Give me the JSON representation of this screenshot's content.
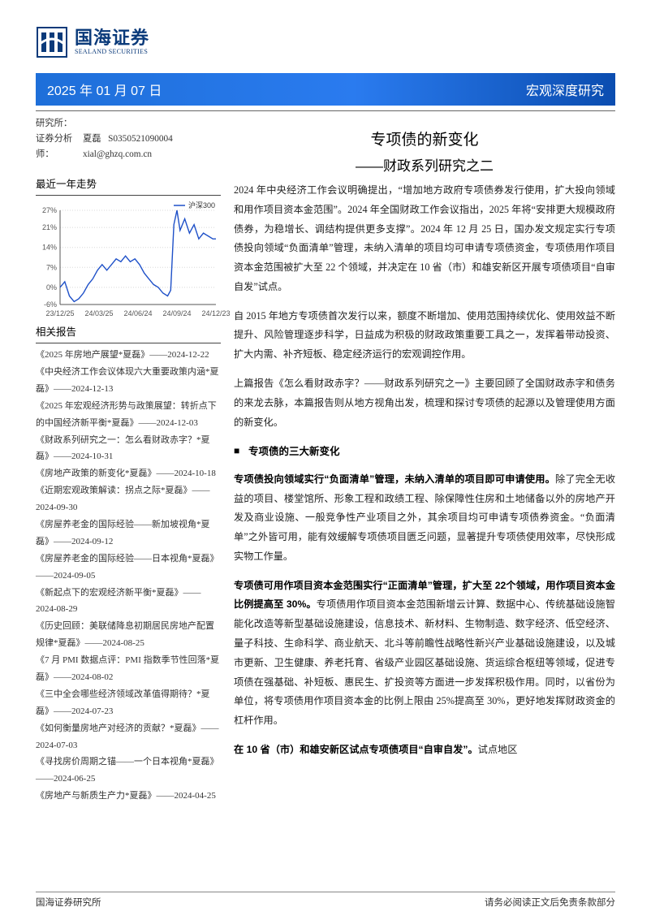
{
  "logo": {
    "cn": "国海证券",
    "en": "SEALAND SECURITIES"
  },
  "date_bar": {
    "left": "2025 年 01 月 07 日",
    "right": "宏观深度研究"
  },
  "analyst": {
    "dept_label": "研究所：",
    "name_label": "证券分析师：",
    "name": "夏磊",
    "code": "S0350521090004",
    "email": "xial@ghzq.com.cn"
  },
  "trend_section_title": "最近一年走势",
  "reports_section_title": "相关报告",
  "chart": {
    "type": "line",
    "legend": "沪深300",
    "legend_color": "#1e50c8",
    "background_color": "#ffffff",
    "grid_color": "#d8d8d8",
    "line_color": "#1e50c8",
    "axis_color": "#555555",
    "x_labels": [
      "23/12/25",
      "24/03/25",
      "24/06/24",
      "24/09/24",
      "24/12/23"
    ],
    "y_ticks": [
      -6,
      0,
      7,
      14,
      21,
      27
    ],
    "y_tick_format_pct": true,
    "ylim": [
      -6,
      27
    ],
    "font_size_ticks_pt": 9,
    "series": [
      [
        0,
        0
      ],
      [
        0.03,
        2
      ],
      [
        0.06,
        -3
      ],
      [
        0.09,
        -5
      ],
      [
        0.12,
        -4
      ],
      [
        0.15,
        -2
      ],
      [
        0.18,
        1
      ],
      [
        0.21,
        3
      ],
      [
        0.24,
        6
      ],
      [
        0.27,
        8
      ],
      [
        0.3,
        6
      ],
      [
        0.33,
        8
      ],
      [
        0.36,
        10
      ],
      [
        0.39,
        9
      ],
      [
        0.42,
        11
      ],
      [
        0.45,
        9
      ],
      [
        0.48,
        10
      ],
      [
        0.51,
        8
      ],
      [
        0.54,
        5
      ],
      [
        0.57,
        3
      ],
      [
        0.6,
        1
      ],
      [
        0.63,
        0
      ],
      [
        0.66,
        -2
      ],
      [
        0.69,
        -3
      ],
      [
        0.71,
        -1
      ],
      [
        0.73,
        22
      ],
      [
        0.75,
        27
      ],
      [
        0.77,
        20
      ],
      [
        0.8,
        24
      ],
      [
        0.83,
        19
      ],
      [
        0.86,
        22
      ],
      [
        0.89,
        17
      ],
      [
        0.92,
        19
      ],
      [
        0.95,
        18
      ],
      [
        0.98,
        17
      ],
      [
        1.0,
        17
      ]
    ]
  },
  "reports": [
    "《2025 年房地产展望*夏磊》——2024-12-22",
    "《中央经济工作会议体现六大重要政策内涵*夏磊》——2024-12-13",
    "《2025 年宏观经济形势与政策展望：转折点下的中国经济新平衡*夏磊》——2024-12-03",
    "《财政系列研究之一：怎么看财政赤字？*夏磊》——2024-10-31",
    "《房地产政策的新变化*夏磊》——2024-10-18",
    "《近期宏观政策解读：拐点之际*夏磊》——2024-09-30",
    "《房屋养老金的国际经验——新加坡视角*夏磊》——2024-09-12",
    "《房屋养老金的国际经验——日本视角*夏磊》——2024-09-05",
    "《新起点下的宏观经济新平衡*夏磊》——2024-08-29",
    "《历史回顾：美联储降息初期居民房地产配置规律*夏磊》——2024-08-25",
    "《7 月 PMI 数据点评：PMI 指数季节性回落*夏磊》——2024-08-02",
    "《三中全会哪些经济领域改革值得期待？*夏磊》——2024-07-23",
    "《如何衡量房地产对经济的贡献？*夏磊》——2024-07-03",
    "《寻找房价周期之锚——一个日本视角*夏磊》——2024-06-25",
    "《房地产与新质生产力*夏磊》——2024-04-25"
  ],
  "title": {
    "main": "专项债的新变化",
    "sub": "——财政系列研究之二"
  },
  "body": {
    "p1": "2024 年中央经济工作会议明确提出，“增加地方政府专项债券发行使用，扩大投向领域和用作项目资本金范围”。2024 年全国财政工作会议指出，2025 年将“安排更大规模政府债券，为稳增长、调结构提供更多支撑”。2024 年 12 月 25 日，国办发文规定实行专项债投向领域“负面清单”管理，未纳入清单的项目均可申请专项债资金，专项债用作项目资本金范围被扩大至 22 个领域，并决定在 10 省（市）和雄安新区开展专项债项目“自审自发”试点。",
    "p2": "自 2015 年地方专项债首次发行以来，额度不断增加、使用范围持续优化、使用效益不断提升、风险管理逐步科学，日益成为积极的财政政策重要工具之一，发挥着带动投资、扩大内需、补齐短板、稳定经济运行的宏观调控作用。",
    "p3": "上篇报告《怎么看财政赤字？——财政系列研究之一》主要回顾了全国财政赤字和债务的来龙去脉，本篇报告则从地方视角出发，梳理和探讨专项债的起源以及管理使用方面的新变化。",
    "bullet1": "专项债的三大新变化",
    "p4_head": "专项债投向领域实行“负面清单”管理，未纳入清单的项目即可申请使用。",
    "p4_body": "除了完全无收益的项目、楼堂馆所、形象工程和政绩工程、除保障性住房和土地储备以外的房地产开发及商业设施、一般竞争性产业项目之外，其余项目均可申请专项债券资金。“负面清单”之外皆可用，能有效缓解专项债项目匮乏问题，显著提升专项债使用效率，尽快形成实物工作量。",
    "p5_head": "专项债可用作项目资本金范围实行“正面清单”管理，扩大至 22个领域，用作项目资本金比例提高至 30%。",
    "p5_body": "专项债用作项目资本金范围新增云计算、数据中心、传统基础设施智能化改造等新型基础设施建设，信息技术、新材料、生物制造、数字经济、低空经济、量子科技、生命科学、商业航天、北斗等前瞻性战略性新兴产业基础设施建设，以及城市更新、卫生健康、养老托育、省级产业园区基础设施、货运综合枢纽等领域，促进专项债在强基础、补短板、惠民生、扩投资等方面进一步发挥积极作用。同时，以省份为单位，将专项债用作项目资本金的比例上限由 25%提高至 30%，更好地发挥财政资金的杠杆作用。",
    "p6_head": "在 10 省（市）和雄安新区试点专项债项目“自审自发”。",
    "p6_body": "试点地区"
  },
  "footer": {
    "left": "国海证券研究所",
    "right": "请务必阅读正文后免责条款部分"
  }
}
